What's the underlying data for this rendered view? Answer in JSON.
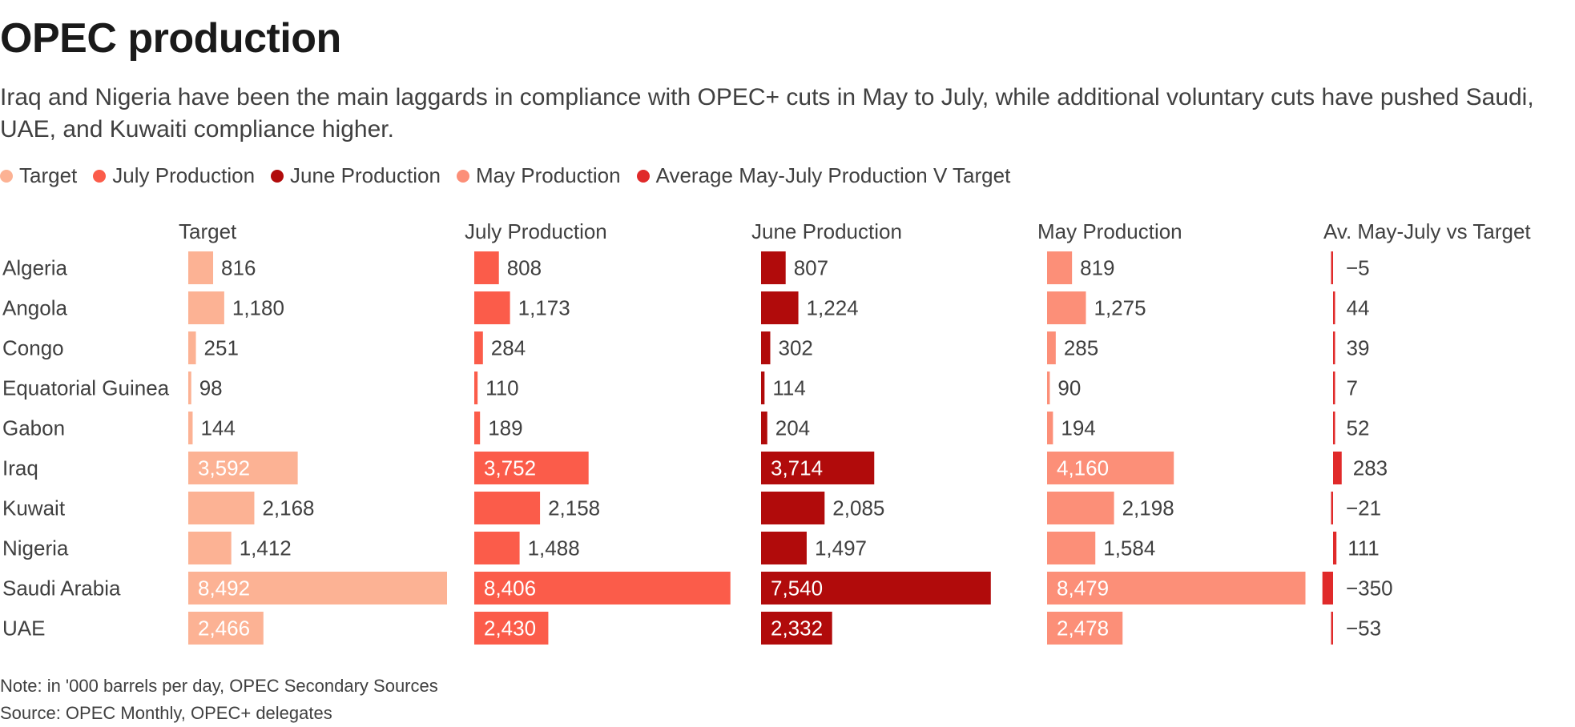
{
  "title": "OPEC production",
  "subtitle": "Iraq and Nigeria have been the main laggards in compliance with OPEC+ cuts in May to July, while additional voluntary cuts have pushed Saudi, UAE, and Kuwaiti compliance higher.",
  "legend": [
    {
      "label": "Target",
      "color": "#fcb294"
    },
    {
      "label": "July Production",
      "color": "#fb5c4a"
    },
    {
      "label": "June Production",
      "color": "#b10b0b"
    },
    {
      "label": "May Production",
      "color": "#fc8f78"
    },
    {
      "label": "Average May-July Production V Target",
      "color": "#e02a2a"
    }
  ],
  "note": "Note: in '000 barrels per day, OPEC Secondary Sources",
  "source": "Source: OPEC Monthly, OPEC+ delegates",
  "chart_data": {
    "type": "bar",
    "orientation": "horizontal",
    "categories": [
      "Algeria",
      "Angola",
      "Congo",
      "Equatorial Guinea",
      "Gabon",
      "Iraq",
      "Kuwait",
      "Nigeria",
      "Saudi Arabia",
      "UAE"
    ],
    "series": [
      {
        "name": "Target",
        "color": "#fcb294",
        "values": [
          816,
          1180,
          251,
          98,
          144,
          3592,
          2168,
          1412,
          8492,
          2466
        ]
      },
      {
        "name": "July Production",
        "color": "#fb5c4a",
        "values": [
          808,
          1173,
          284,
          110,
          189,
          3752,
          2158,
          1488,
          8406,
          2430
        ]
      },
      {
        "name": "June Production",
        "color": "#b10b0b",
        "values": [
          807,
          1224,
          302,
          114,
          204,
          3714,
          2085,
          1497,
          7540,
          2332
        ]
      },
      {
        "name": "May Production",
        "color": "#fc8f78",
        "values": [
          819,
          1275,
          285,
          90,
          194,
          4160,
          2198,
          1584,
          8479,
          2478
        ]
      },
      {
        "name": "Av. May-July vs Target",
        "color": "#e02a2a",
        "values": [
          -5,
          44,
          39,
          7,
          52,
          283,
          -21,
          111,
          -350,
          -53
        ]
      }
    ],
    "value_labels": [
      [
        "816",
        "1,180",
        "251",
        "98",
        "144",
        "3,592",
        "2,168",
        "1,412",
        "8,492",
        "2,466"
      ],
      [
        "808",
        "1,173",
        "284",
        "110",
        "189",
        "3,752",
        "2,158",
        "1,488",
        "8,406",
        "2,430"
      ],
      [
        "807",
        "1,224",
        "302",
        "114",
        "204",
        "3,714",
        "2,085",
        "1,497",
        "7,540",
        "2,332"
      ],
      [
        "819",
        "1,275",
        "285",
        "90",
        "194",
        "4,160",
        "2,198",
        "1,584",
        "8,479",
        "2,478"
      ],
      [
        "−5",
        "44",
        "39",
        "7",
        "52",
        "283",
        "−21",
        "111",
        "−350",
        "−53"
      ]
    ],
    "ylabel": "",
    "xlabel": ""
  }
}
